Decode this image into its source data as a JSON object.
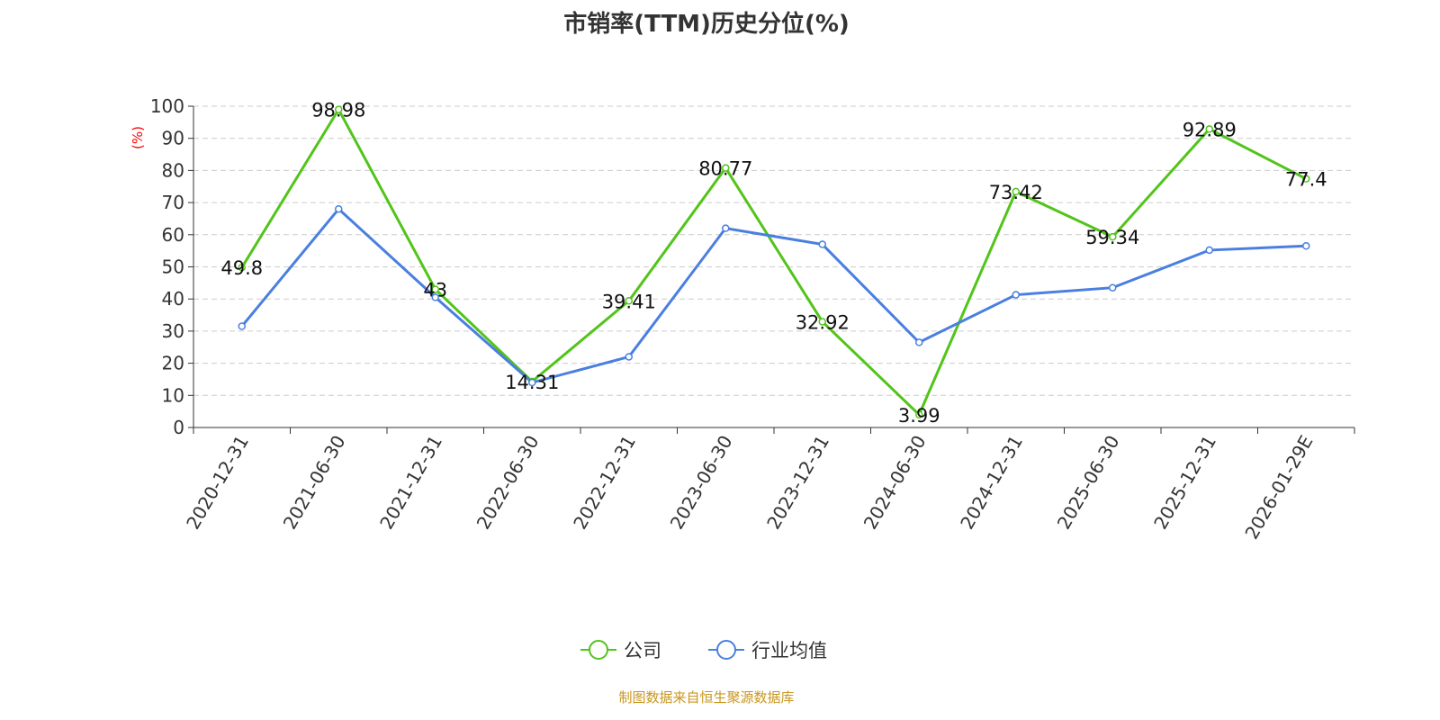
{
  "chart_data": {
    "type": "line",
    "title": "市销率(TTM)历史分位(%)",
    "ylabel": "(%)",
    "xlabel": "",
    "ylim": [
      0,
      100
    ],
    "yticks": [
      0,
      10,
      20,
      30,
      40,
      50,
      60,
      70,
      80,
      90,
      100
    ],
    "grid": true,
    "legend_position": "bottom",
    "categories": [
      "2020-12-31",
      "2021-06-30",
      "2021-12-31",
      "2022-06-30",
      "2022-12-31",
      "2023-06-30",
      "2023-12-31",
      "2024-06-30",
      "2024-12-31",
      "2025-06-30",
      "2025-12-31",
      "2026-01-29E"
    ],
    "series": [
      {
        "name": "公司",
        "color": "#52c41a",
        "values": [
          49.8,
          98.98,
          43,
          14.31,
          39.41,
          80.77,
          32.92,
          3.99,
          73.42,
          59.34,
          92.89,
          77.4
        ],
        "labels": true
      },
      {
        "name": "行业均值",
        "color": "#4a7fe0",
        "values": [
          31.5,
          68,
          40.5,
          14,
          22,
          62,
          57,
          26.5,
          41.3,
          43.5,
          55.2,
          56.5
        ],
        "labels": false
      }
    ]
  },
  "footer": "制图数据来自恒生聚源数据库"
}
